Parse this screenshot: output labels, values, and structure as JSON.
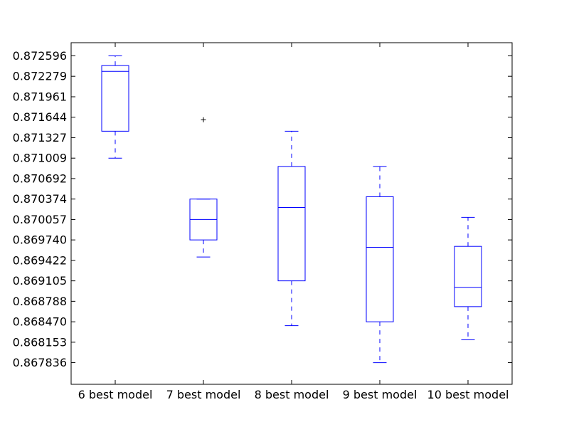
{
  "chart_data": {
    "type": "boxplot",
    "title": "",
    "xlabel": "",
    "ylabel": "",
    "ylim": [
      0.8675,
      0.8728
    ],
    "y_ticks": [
      0.872596,
      0.872279,
      0.871961,
      0.871644,
      0.871327,
      0.871009,
      0.870692,
      0.870374,
      0.870057,
      0.86974,
      0.869422,
      0.869105,
      0.868788,
      0.86847,
      0.868153,
      0.867836
    ],
    "y_tick_labels": [
      "0.872596",
      "0.872279",
      "0.871961",
      "0.871644",
      "0.871327",
      "0.871009",
      "0.870692",
      "0.870374",
      "0.870057",
      "0.869740",
      "0.869422",
      "0.869105",
      "0.868788",
      "0.868470",
      "0.868153",
      "0.867836"
    ],
    "categories": [
      "6 best model",
      "7 best model",
      "8 best model",
      "9 best model",
      "10 best model"
    ],
    "boxes": [
      {
        "whisker_low": 0.871009,
        "q1": 0.871427,
        "median": 0.872355,
        "q3": 0.872445,
        "whisker_high": 0.872596,
        "outliers": []
      },
      {
        "whisker_low": 0.869475,
        "q1": 0.86974,
        "median": 0.870057,
        "q3": 0.870374,
        "whisker_high": 0.870374,
        "outliers": [
          0.871605
        ]
      },
      {
        "whisker_low": 0.86841,
        "q1": 0.869105,
        "median": 0.870244,
        "q3": 0.87088,
        "whisker_high": 0.871427,
        "outliers": []
      },
      {
        "whisker_low": 0.867836,
        "q1": 0.86847,
        "median": 0.869625,
        "q3": 0.87041,
        "whisker_high": 0.87088,
        "outliers": []
      },
      {
        "whisker_low": 0.86819,
        "q1": 0.868705,
        "median": 0.869005,
        "q3": 0.86964,
        "whisker_high": 0.87009,
        "outliers": []
      }
    ],
    "colors": {
      "box": "#0000ff",
      "outlier": "#000000",
      "axes": "#000000"
    },
    "grid": false,
    "legend": "none"
  }
}
